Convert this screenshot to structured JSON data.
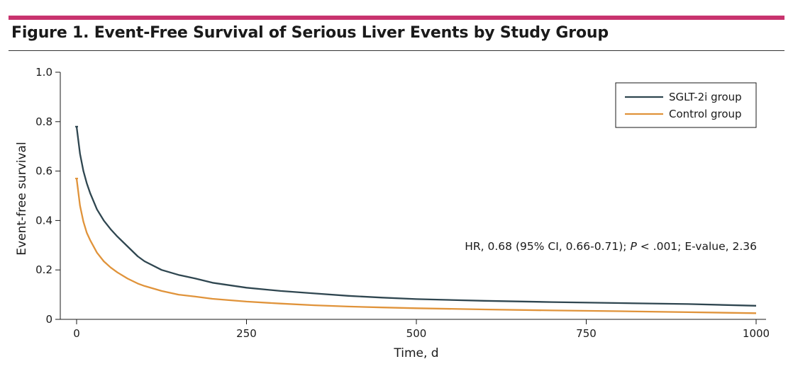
{
  "figure": {
    "title": "Figure 1. Event-Free Survival of Serious Liver Events by Study Group",
    "accent_color": "#c8336e"
  },
  "annotation": {
    "prefix": "HR, 0.68 (95% CI, 0.66-0.71); ",
    "p_italic": "P",
    "suffix": " < .001; E-value, 2.36"
  },
  "chart_data": {
    "type": "line",
    "xlabel": "Time, d",
    "ylabel": "Event-free survival",
    "xlim": [
      0,
      1000
    ],
    "ylim": [
      0,
      1.0
    ],
    "x_ticks": [
      0,
      250,
      500,
      750,
      1000
    ],
    "x_tick_labels": [
      "0",
      "250",
      "500",
      "750",
      "1000"
    ],
    "y_ticks": [
      0,
      0.2,
      0.4,
      0.6,
      0.8,
      1.0
    ],
    "y_tick_labels": [
      "0",
      "0.2",
      "0.4",
      "0.6",
      "0.8",
      "1.0"
    ],
    "grid": false,
    "legend_position": "top-right",
    "series": [
      {
        "name": "SGLT-2i group",
        "color": "#2f4650",
        "x": [
          0,
          5,
          10,
          15,
          20,
          30,
          40,
          50,
          60,
          75,
          90,
          100,
          125,
          150,
          175,
          200,
          250,
          300,
          350,
          400,
          450,
          500,
          600,
          700,
          800,
          900,
          1000
        ],
        "y": [
          0.78,
          0.67,
          0.6,
          0.55,
          0.51,
          0.445,
          0.4,
          0.365,
          0.335,
          0.295,
          0.255,
          0.235,
          0.2,
          0.18,
          0.165,
          0.148,
          0.128,
          0.115,
          0.105,
          0.095,
          0.088,
          0.082,
          0.075,
          0.07,
          0.066,
          0.062,
          0.055
        ]
      },
      {
        "name": "Control group",
        "color": "#e0933a",
        "x": [
          0,
          5,
          10,
          15,
          20,
          30,
          40,
          50,
          60,
          75,
          90,
          100,
          125,
          150,
          175,
          200,
          250,
          300,
          350,
          400,
          450,
          500,
          600,
          700,
          800,
          900,
          1000
        ],
        "y": [
          0.57,
          0.46,
          0.395,
          0.35,
          0.32,
          0.27,
          0.235,
          0.21,
          0.19,
          0.165,
          0.145,
          0.135,
          0.115,
          0.1,
          0.092,
          0.083,
          0.072,
          0.064,
          0.057,
          0.052,
          0.048,
          0.045,
          0.04,
          0.036,
          0.033,
          0.029,
          0.025
        ]
      }
    ]
  }
}
